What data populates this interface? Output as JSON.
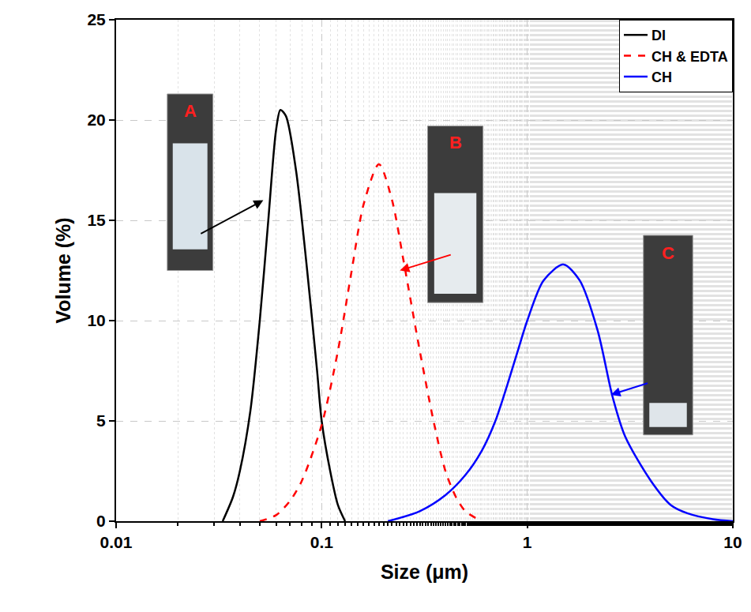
{
  "chart_data": {
    "type": "line",
    "x_label": "Size (μm)",
    "y_label": "Volume (%)",
    "log": "x",
    "grid": true,
    "legend": "upper right",
    "xlim": [
      0.01,
      10
    ],
    "xticks": [
      0.01,
      0.1,
      1,
      10
    ],
    "ylim": [
      0,
      25
    ],
    "yticks": [
      0,
      5,
      10,
      15,
      20,
      25
    ],
    "series": [
      {
        "name": "DI",
        "color": "#000000",
        "line_style": "solid",
        "x": [
          0.033,
          0.037,
          0.04,
          0.045,
          0.05,
          0.055,
          0.06,
          0.063,
          0.067,
          0.075,
          0.085,
          0.095,
          0.1,
          0.11,
          0.12,
          0.13
        ],
        "values": [
          0,
          1.2,
          2.5,
          5.5,
          10,
          15,
          19.5,
          20.5,
          20.2,
          17.5,
          12.5,
          7.5,
          5,
          2.5,
          0.8,
          0
        ]
      },
      {
        "name": "CH & EDTA",
        "color": "#ff0000",
        "line_style": "dash",
        "x": [
          0.05,
          0.06,
          0.07,
          0.08,
          0.1,
          0.12,
          0.14,
          0.16,
          0.19,
          0.22,
          0.25,
          0.3,
          0.35,
          0.4,
          0.45,
          0.5,
          0.6
        ],
        "values": [
          0,
          0.3,
          1,
          2,
          4.8,
          8.5,
          12.5,
          15.8,
          17.8,
          16,
          13,
          8.5,
          5,
          2.5,
          1.2,
          0.5,
          0
        ]
      },
      {
        "name": "CH",
        "color": "#0000ff",
        "line_style": "solid",
        "x": [
          0.21,
          0.3,
          0.4,
          0.5,
          0.6,
          0.7,
          0.8,
          0.9,
          1.0,
          1.2,
          1.5,
          1.8,
          2.2,
          2.6,
          3,
          4,
          5,
          6,
          8,
          10
        ],
        "values": [
          0,
          0.5,
          1.3,
          2.3,
          3.5,
          5,
          6.8,
          8.5,
          10,
          12,
          12.8,
          12,
          9.5,
          6.2,
          4.2,
          2,
          0.8,
          0.4,
          0.1,
          0
        ]
      }
    ],
    "annotations": [
      {
        "text": "A",
        "x": 0.052,
        "y": 16
      },
      {
        "text": "B",
        "x": 0.24,
        "y": 12.5
      },
      {
        "text": "C",
        "x": 2.55,
        "y": 6.3
      }
    ]
  }
}
